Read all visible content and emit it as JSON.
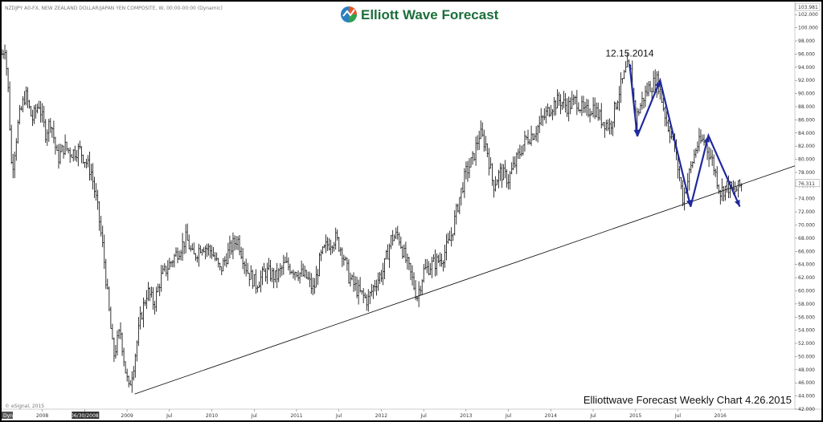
{
  "header": {
    "symbol_line": "NZDJPY A0-FX, NEW ZEALAND DOLLAR/JAPAN YEN COMPOSITE, W, 00:00-00:00 (Dynamic)",
    "logo_text": "Elliott Wave Forecast",
    "copyright": "© eSignal, 2015",
    "corner_label": "Dyn"
  },
  "colors": {
    "wave_line": "#1f2a9c",
    "bars": "#000000",
    "trendline": "#000000",
    "logo_text": "#1c6e3b",
    "background": "#ffffff"
  },
  "chart_data": {
    "type": "line",
    "title": "Elliottwave Forecast Weekly Chart 4.26.2015",
    "xlabel": "",
    "ylabel": "",
    "ylim": [
      42,
      103.981
    ],
    "y_ticks": [
      "102.000",
      "100.000",
      "98.000",
      "96.000",
      "94.000",
      "92.000",
      "90.000",
      "88.000",
      "86.000",
      "84.000",
      "82.000",
      "80.000",
      "78.000",
      "76.000",
      "74.000",
      "72.000",
      "70.000",
      "68.000",
      "66.000",
      "64.000",
      "62.000",
      "60.000",
      "58.000",
      "56.000",
      "54.000",
      "52.000",
      "50.000",
      "48.000",
      "46.000",
      "44.000",
      "42.000"
    ],
    "y_top_label": "103.981",
    "last_price_label": "76.311",
    "x_ticks": [
      {
        "label": "2008",
        "x": 2008.0
      },
      {
        "label": "06/30/2008",
        "x": 2008.5,
        "highlight": true
      },
      {
        "label": "2009",
        "x": 2009.0
      },
      {
        "label": "Jul",
        "x": 2009.5
      },
      {
        "label": "2010",
        "x": 2010.0
      },
      {
        "label": "Jul",
        "x": 2010.5
      },
      {
        "label": "2011",
        "x": 2011.0
      },
      {
        "label": "Jul",
        "x": 2011.5
      },
      {
        "label": "2012",
        "x": 2012.0
      },
      {
        "label": "Jul",
        "x": 2012.5
      },
      {
        "label": "2013",
        "x": 2013.0
      },
      {
        "label": "Jul",
        "x": 2013.5
      },
      {
        "label": "2014",
        "x": 2014.0
      },
      {
        "label": "Jul",
        "x": 2014.5
      },
      {
        "label": "2015",
        "x": 2015.0
      },
      {
        "label": "Jul",
        "x": 2015.5
      },
      {
        "label": "2016",
        "x": 2016.0
      }
    ],
    "xlim": [
      2007.52,
      2016.88
    ],
    "price_path": [
      [
        2007.52,
        96
      ],
      [
        2007.56,
        97.2
      ],
      [
        2007.6,
        90
      ],
      [
        2007.64,
        78
      ],
      [
        2007.72,
        86
      ],
      [
        2007.8,
        90
      ],
      [
        2007.88,
        86
      ],
      [
        2007.96,
        88.5
      ],
      [
        2008.04,
        84
      ],
      [
        2008.1,
        86
      ],
      [
        2008.18,
        80
      ],
      [
        2008.26,
        82
      ],
      [
        2008.34,
        81
      ],
      [
        2008.44,
        81.5
      ],
      [
        2008.5,
        80
      ],
      [
        2008.58,
        78
      ],
      [
        2008.66,
        72
      ],
      [
        2008.72,
        66
      ],
      [
        2008.78,
        58
      ],
      [
        2008.84,
        50
      ],
      [
        2008.92,
        54
      ],
      [
        2008.98,
        48
      ],
      [
        2009.02,
        45
      ],
      [
        2009.08,
        49
      ],
      [
        2009.16,
        56
      ],
      [
        2009.24,
        60
      ],
      [
        2009.32,
        58
      ],
      [
        2009.4,
        62
      ],
      [
        2009.5,
        64
      ],
      [
        2009.6,
        66
      ],
      [
        2009.7,
        68
      ],
      [
        2009.78,
        65
      ],
      [
        2009.88,
        67
      ],
      [
        2010.0,
        66
      ],
      [
        2010.1,
        63
      ],
      [
        2010.2,
        66
      ],
      [
        2010.3,
        68
      ],
      [
        2010.42,
        63
      ],
      [
        2010.52,
        61
      ],
      [
        2010.64,
        63
      ],
      [
        2010.76,
        62
      ],
      [
        2010.86,
        64
      ],
      [
        2011.0,
        63
      ],
      [
        2011.12,
        62
      ],
      [
        2011.2,
        60
      ],
      [
        2011.28,
        65
      ],
      [
        2011.36,
        67
      ],
      [
        2011.46,
        68
      ],
      [
        2011.54,
        66
      ],
      [
        2011.62,
        62
      ],
      [
        2011.72,
        60
      ],
      [
        2011.84,
        58.5
      ],
      [
        2011.92,
        61
      ],
      [
        2012.02,
        63
      ],
      [
        2012.12,
        68
      ],
      [
        2012.2,
        68.5
      ],
      [
        2012.28,
        65
      ],
      [
        2012.36,
        62
      ],
      [
        2012.42,
        59
      ],
      [
        2012.5,
        63
      ],
      [
        2012.6,
        64
      ],
      [
        2012.72,
        65
      ],
      [
        2012.82,
        68
      ],
      [
        2012.92,
        74
      ],
      [
        2013.0,
        78
      ],
      [
        2013.08,
        80
      ],
      [
        2013.16,
        84
      ],
      [
        2013.24,
        82
      ],
      [
        2013.32,
        76
      ],
      [
        2013.4,
        78
      ],
      [
        2013.5,
        77
      ],
      [
        2013.6,
        80
      ],
      [
        2013.7,
        83
      ],
      [
        2013.8,
        84
      ],
      [
        2013.9,
        86
      ],
      [
        2014.0,
        88
      ],
      [
        2014.1,
        89
      ],
      [
        2014.2,
        88
      ],
      [
        2014.3,
        89
      ],
      [
        2014.4,
        87
      ],
      [
        2014.5,
        88
      ],
      [
        2014.6,
        86
      ],
      [
        2014.7,
        85
      ],
      [
        2014.8,
        90
      ],
      [
        2014.9,
        94
      ],
      [
        2014.95,
        93
      ],
      [
        2015.0,
        86
      ],
      [
        2015.08,
        89
      ],
      [
        2015.16,
        91
      ],
      [
        2015.26,
        92
      ],
      [
        2015.36,
        86
      ],
      [
        2015.46,
        82
      ],
      [
        2015.56,
        74
      ],
      [
        2015.64,
        78
      ],
      [
        2015.72,
        82
      ],
      [
        2015.8,
        83
      ],
      [
        2015.9,
        80
      ],
      [
        2016.0,
        75
      ],
      [
        2016.08,
        76
      ],
      [
        2016.16,
        75
      ],
      [
        2016.26,
        76.3
      ]
    ],
    "wave_lines": [
      [
        [
          2014.93,
          94.5
        ],
        [
          2015.02,
          83.5
        ],
        [
          2015.29,
          92
        ],
        [
          2015.65,
          72.8
        ],
        [
          2015.86,
          83.6
        ],
        [
          2016.23,
          72.8
        ]
      ]
    ],
    "trendline": [
      [
        2009.09,
        44.3
      ],
      [
        2016.88,
        79
      ]
    ],
    "annotations": [
      {
        "text": "12.15.2014",
        "x": 2014.93,
        "y": 95.6
      }
    ]
  }
}
